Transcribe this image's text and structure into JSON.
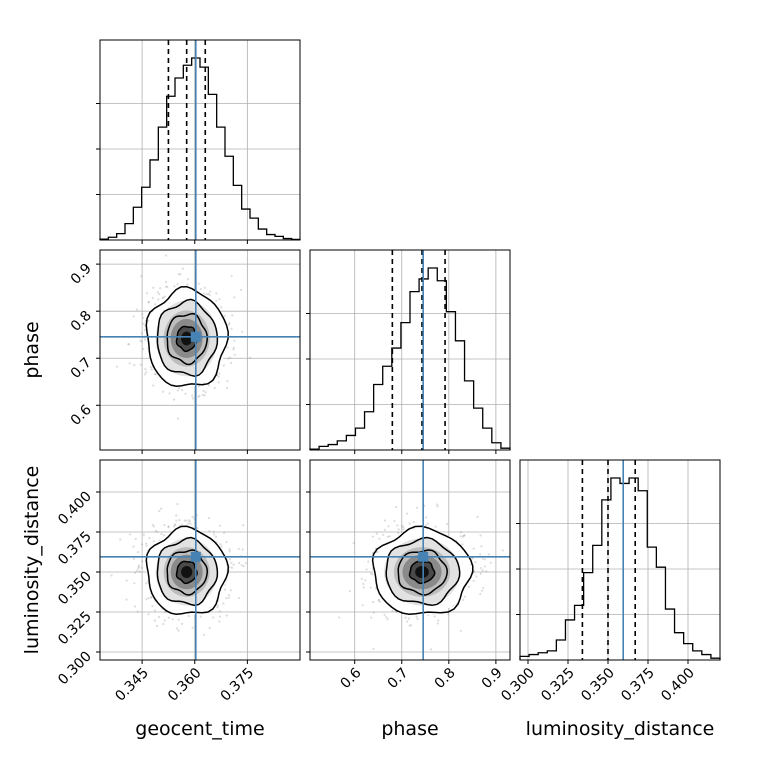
{
  "chart_data": {
    "type": "corner",
    "parameters": [
      "geocent_time",
      "phase",
      "luminosity_distance"
    ],
    "truths": {
      "geocent_time": 0.3603,
      "phase": 0.7455,
      "luminosity_distance": 0.3595
    },
    "quantiles": {
      "geocent_time": [
        0.3525,
        0.3577,
        0.363
      ],
      "phase": [
        0.68,
        0.743,
        0.792
      ],
      "luminosity_distance": [
        0.334,
        0.35,
        0.367
      ]
    },
    "ranges": {
      "geocent_time": [
        0.333,
        0.39
      ],
      "phase": [
        0.505,
        0.93
      ],
      "luminosity_distance": [
        0.295,
        0.42
      ]
    },
    "ticks": {
      "geocent_time": {
        "values": [
          0.345,
          0.36,
          0.375
        ],
        "labels": [
          "0.345",
          "0.360",
          "0.375"
        ]
      },
      "phase": {
        "values": [
          0.6,
          0.7,
          0.8,
          0.9
        ],
        "labels": [
          "0.6",
          "0.7",
          "0.8",
          "0.9"
        ]
      },
      "luminosity_distance": {
        "values": [
          0.3,
          0.325,
          0.35,
          0.375,
          0.4
        ],
        "labels": [
          "0.300",
          "0.325",
          "0.350",
          "0.375",
          "0.400"
        ]
      }
    },
    "histograms": {
      "geocent_time": [
        0.005,
        0.015,
        0.035,
        0.09,
        0.18,
        0.29,
        0.44,
        0.62,
        0.79,
        0.89,
        0.96,
        1.0,
        0.95,
        0.8,
        0.62,
        0.46,
        0.3,
        0.17,
        0.12,
        0.06,
        0.03,
        0.02,
        0.008,
        0.003
      ],
      "phase": [
        0.005,
        0.02,
        0.03,
        0.05,
        0.08,
        0.12,
        0.21,
        0.36,
        0.46,
        0.56,
        0.7,
        0.87,
        0.94,
        1.0,
        0.93,
        0.76,
        0.6,
        0.38,
        0.23,
        0.12,
        0.04,
        0.01
      ],
      "luminosity_distance": [
        0.02,
        0.03,
        0.04,
        0.05,
        0.11,
        0.22,
        0.3,
        0.48,
        0.63,
        0.88,
        1.0,
        0.97,
        1.0,
        0.93,
        0.62,
        0.51,
        0.28,
        0.15,
        0.09,
        0.05,
        0.03,
        0.01
      ]
    },
    "contours_2d": {
      "phase_vs_geocent_time": {
        "center": [
          0.3577,
          0.742
        ],
        "sigma": [
          0.0057,
          0.052
        ]
      },
      "luminosity_distance_vs_geocent_time": {
        "center": [
          0.3577,
          0.35
        ],
        "sigma": [
          0.0057,
          0.0135
        ]
      },
      "luminosity_distance_vs_phase": {
        "center": [
          0.743,
          0.35
        ],
        "sigma": [
          0.052,
          0.0135
        ]
      }
    },
    "truth_color": "#4682b4",
    "grid": true,
    "xlabels": [
      "geocent_time",
      "phase",
      "luminosity_distance"
    ],
    "ylabels": [
      "phase",
      "luminosity_distance"
    ]
  }
}
